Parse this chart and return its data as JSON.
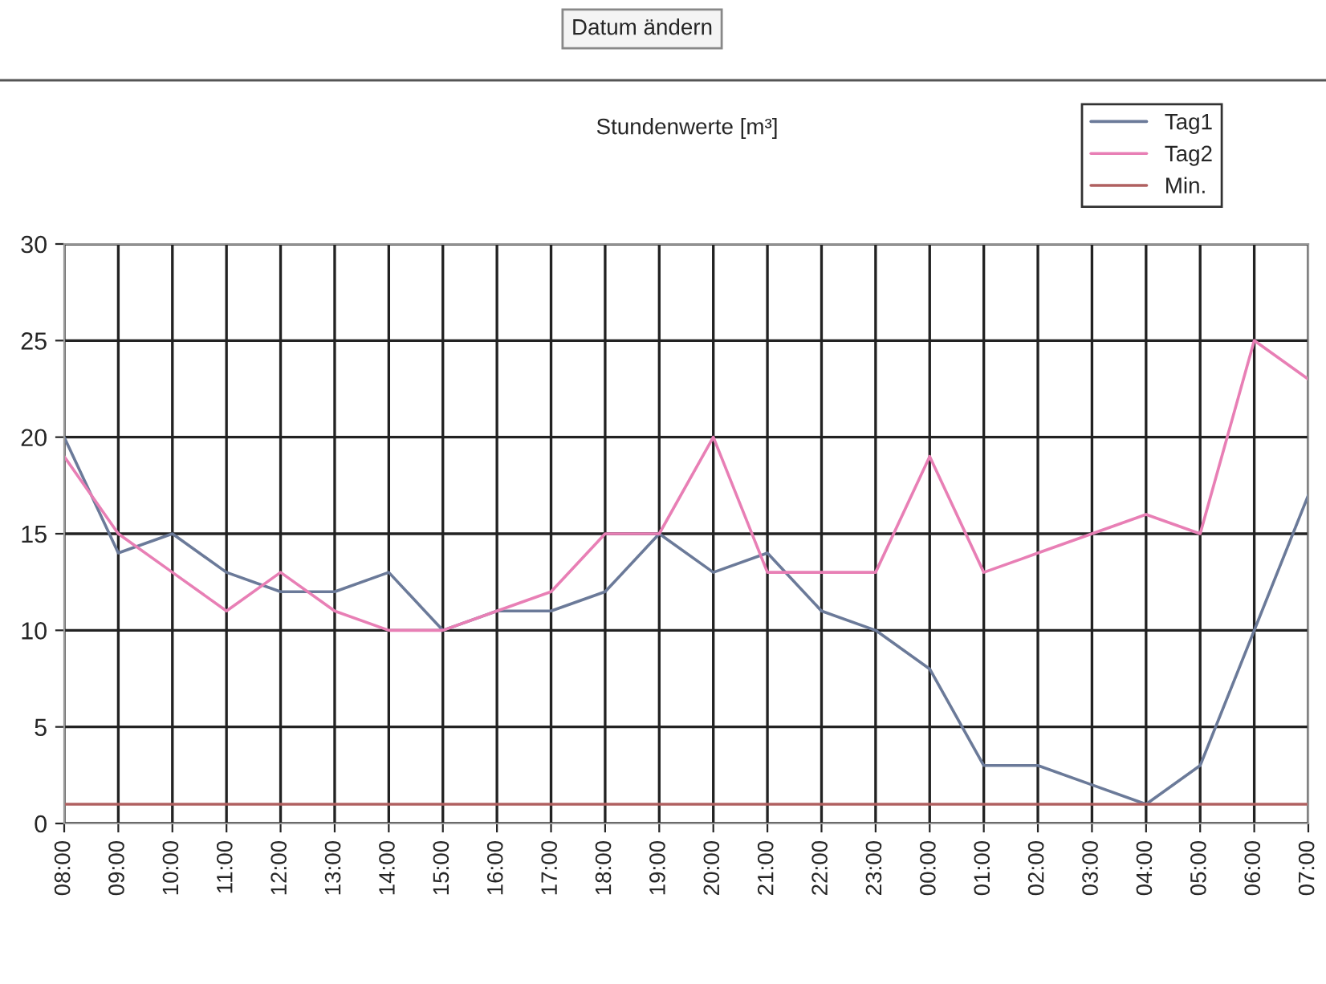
{
  "chart_data": {
    "type": "line",
    "title": "Stundenwerte [m³]",
    "annotations": [
      "Datum ändern"
    ],
    "categories": [
      "08:00",
      "09:00",
      "10:00",
      "11:00",
      "12:00",
      "13:00",
      "14:00",
      "15:00",
      "16:00",
      "17:00",
      "18:00",
      "19:00",
      "20:00",
      "21:00",
      "22:00",
      "23:00",
      "00:00",
      "01:00",
      "02:00",
      "03:00",
      "04:00",
      "05:00",
      "06:00",
      "07:00"
    ],
    "series": [
      {
        "name": "Tag1",
        "color": "#6b7a99",
        "values": [
          20,
          14,
          15,
          13,
          12,
          12,
          13,
          10,
          11,
          11,
          12,
          15,
          13,
          14,
          11,
          10,
          8,
          3,
          3,
          2,
          1,
          3,
          10,
          17
        ]
      },
      {
        "name": "Tag2",
        "color": "#e87fb5",
        "values": [
          19,
          15,
          13,
          11,
          13,
          11,
          10,
          10,
          11,
          12,
          15,
          15,
          20,
          13,
          13,
          13,
          19,
          13,
          14,
          15,
          16,
          15,
          25,
          23
        ]
      },
      {
        "name": "Min.",
        "color": "#b06060",
        "values": [
          1,
          1,
          1,
          1,
          1,
          1,
          1,
          1,
          1,
          1,
          1,
          1,
          1,
          1,
          1,
          1,
          1,
          1,
          1,
          1,
          1,
          1,
          1,
          1
        ]
      }
    ],
    "ylim": [
      0,
      30
    ],
    "yticks": [
      0,
      5,
      10,
      15,
      20,
      25,
      30
    ],
    "grid": true,
    "legend": "top right",
    "marker": "none",
    "line_style": "solid"
  }
}
